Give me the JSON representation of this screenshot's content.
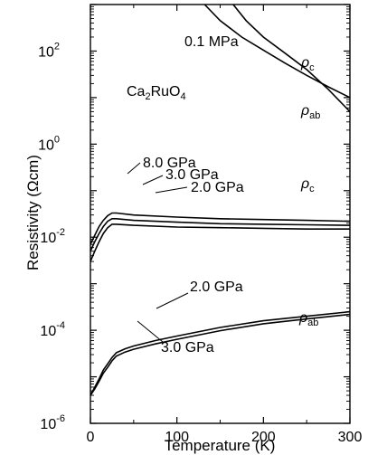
{
  "chart_data": {
    "type": "line",
    "xlabel": "Temperature (K)",
    "ylabel": "Resistivity (Ωcm)",
    "xlim": [
      0,
      300
    ],
    "ylim": [
      1e-06,
      1000.0
    ],
    "y_scale": "log",
    "x_ticks": [
      0,
      100,
      200,
      300
    ],
    "y_ticks": [
      {
        "value": 1e-06,
        "base": "10",
        "exp": "-6"
      },
      {
        "value": 0.0001,
        "base": "10",
        "exp": "-4"
      },
      {
        "value": 0.01,
        "base": "10",
        "exp": "-2"
      },
      {
        "value": 1.0,
        "base": "10",
        "exp": "0"
      },
      {
        "value": 100.0,
        "base": "10",
        "exp": "2"
      }
    ],
    "grid": false,
    "compound": {
      "prefix": "Ca",
      "sub1": "2",
      "mid": "RuO",
      "sub2": "4"
    },
    "series": [
      {
        "name": "ρc 0.1 MPa",
        "x": [
          132,
          150,
          175,
          200,
          225,
          250,
          275,
          300
        ],
        "y": [
          1000,
          450,
          200,
          105,
          55,
          30,
          17,
          10
        ]
      },
      {
        "name": "ρab 0.1 MPa",
        "x": [
          165,
          180,
          200,
          225,
          250,
          275,
          300
        ],
        "y": [
          1000,
          450,
          200,
          90,
          40,
          15,
          5
        ]
      },
      {
        "name": "ρc 8.0 GPa",
        "x": [
          0,
          5,
          10,
          15,
          20,
          25,
          30,
          50,
          100,
          150,
          200,
          250,
          300
        ],
        "y": [
          0.007,
          0.011,
          0.017,
          0.023,
          0.029,
          0.033,
          0.033,
          0.03,
          0.027,
          0.025,
          0.024,
          0.023,
          0.022
        ]
      },
      {
        "name": "ρc 3.0 GPa",
        "x": [
          0,
          5,
          10,
          15,
          20,
          25,
          30,
          50,
          100,
          150,
          200,
          250,
          300
        ],
        "y": [
          0.005,
          0.008,
          0.012,
          0.017,
          0.022,
          0.025,
          0.025,
          0.023,
          0.021,
          0.0195,
          0.019,
          0.0185,
          0.018
        ]
      },
      {
        "name": "ρc 2.0 GPa",
        "x": [
          0,
          5,
          10,
          15,
          20,
          25,
          30,
          50,
          100,
          150,
          200,
          250,
          300
        ],
        "y": [
          0.003,
          0.005,
          0.008,
          0.012,
          0.016,
          0.019,
          0.019,
          0.018,
          0.0165,
          0.016,
          0.0155,
          0.015,
          0.015
        ]
      },
      {
        "name": "ρab 2.0 GPa",
        "x": [
          0,
          5,
          10,
          15,
          20,
          25,
          30,
          40,
          50,
          75,
          100,
          150,
          200,
          250,
          300
        ],
        "y": [
          4e-06,
          6e-06,
          9e-06,
          1.4e-05,
          1.9e-05,
          2.6e-05,
          3.3e-05,
          4e-05,
          4.6e-05,
          6e-05,
          7.5e-05,
          0.000115,
          0.00016,
          0.0002,
          0.00025
        ]
      },
      {
        "name": "ρab 3.0 GPa",
        "x": [
          0,
          5,
          10,
          15,
          20,
          25,
          30,
          40,
          50,
          75,
          100,
          150,
          200,
          250,
          300
        ],
        "y": [
          4e-06,
          5.5e-06,
          8e-06,
          1.2e-05,
          1.6e-05,
          2.2e-05,
          2.8e-05,
          3.4e-05,
          3.9e-05,
          5.1e-05,
          6.4e-05,
          9.8e-05,
          0.000138,
          0.000175,
          0.00022
        ]
      }
    ],
    "annotations": {
      "p01": "0.1 MPa",
      "p80": "8.0 GPa",
      "p30a": "3.0 GPa",
      "p20a": "2.0 GPa",
      "p20b": "2.0 GPa",
      "p30b": "3.0 GPa",
      "rho": "ρ",
      "sub_c": "c",
      "sub_ab": "ab"
    }
  }
}
